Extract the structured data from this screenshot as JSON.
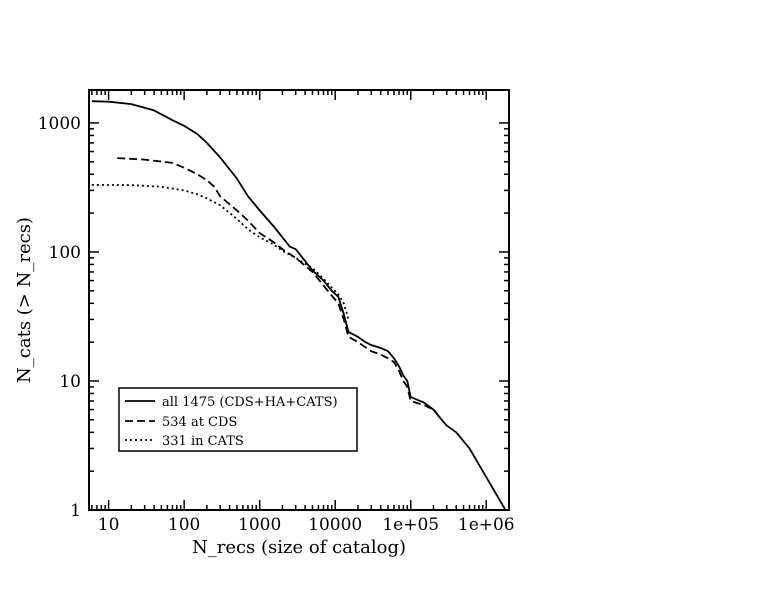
{
  "chart_data": {
    "type": "line",
    "xlabel": "N_recs (size of catalog)",
    "ylabel": "N_cats (> N_recs)",
    "xscale": "log",
    "yscale": "log",
    "xlim": [
      5.5,
      2000000
    ],
    "ylim": [
      1,
      1800
    ],
    "xticks": [
      {
        "value": 10,
        "label": "10"
      },
      {
        "value": 100,
        "label": "100"
      },
      {
        "value": 1000,
        "label": "1000"
      },
      {
        "value": 10000,
        "label": "10000"
      },
      {
        "value": 100000,
        "label": "1e+05"
      },
      {
        "value": 1000000,
        "label": "1e+06"
      }
    ],
    "yticks": [
      {
        "value": 1,
        "label": "1"
      },
      {
        "value": 10,
        "label": "10"
      },
      {
        "value": 100,
        "label": "100"
      },
      {
        "value": 1000,
        "label": "1000"
      }
    ],
    "grid": false,
    "legend_position": "bottom-left",
    "series": [
      {
        "name": "all 1475 (CDS+HA+CATS)",
        "style": "solid",
        "color": "#000000",
        "points": [
          [
            6,
            1475
          ],
          [
            10,
            1460
          ],
          [
            20,
            1400
          ],
          [
            40,
            1250
          ],
          [
            70,
            1050
          ],
          [
            100,
            950
          ],
          [
            150,
            820
          ],
          [
            200,
            700
          ],
          [
            300,
            540
          ],
          [
            500,
            370
          ],
          [
            700,
            270
          ],
          [
            1000,
            210
          ],
          [
            1500,
            160
          ],
          [
            2000,
            130
          ],
          [
            2500,
            110
          ],
          [
            3000,
            105
          ],
          [
            4000,
            85
          ],
          [
            5000,
            72
          ],
          [
            7000,
            60
          ],
          [
            9000,
            50
          ],
          [
            11000,
            45
          ],
          [
            13000,
            33
          ],
          [
            15000,
            24
          ],
          [
            20000,
            22
          ],
          [
            25000,
            20
          ],
          [
            30000,
            19
          ],
          [
            40000,
            18
          ],
          [
            50000,
            17
          ],
          [
            60000,
            15
          ],
          [
            70000,
            13
          ],
          [
            80000,
            11
          ],
          [
            90000,
            10
          ],
          [
            100000,
            7.5
          ],
          [
            150000,
            6.8
          ],
          [
            200000,
            6
          ],
          [
            250000,
            5.1
          ],
          [
            300000,
            4.5
          ],
          [
            400000,
            4
          ],
          [
            600000,
            3
          ],
          [
            900000,
            2
          ],
          [
            1800000,
            1
          ]
        ]
      },
      {
        "name": "534 at CDS",
        "style": "dashed",
        "color": "#000000",
        "points": [
          [
            13,
            534
          ],
          [
            30,
            520
          ],
          [
            70,
            490
          ],
          [
            100,
            450
          ],
          [
            150,
            400
          ],
          [
            200,
            360
          ],
          [
            250,
            320
          ],
          [
            300,
            270
          ],
          [
            500,
            210
          ],
          [
            700,
            175
          ],
          [
            1000,
            140
          ],
          [
            1500,
            120
          ],
          [
            2000,
            105
          ],
          [
            3000,
            90
          ],
          [
            5000,
            70
          ],
          [
            7000,
            55
          ],
          [
            9000,
            46
          ],
          [
            11000,
            40
          ],
          [
            13000,
            30
          ],
          [
            15000,
            22
          ],
          [
            20000,
            20
          ],
          [
            30000,
            17
          ],
          [
            40000,
            16
          ],
          [
            50000,
            15
          ],
          [
            60000,
            14
          ],
          [
            70000,
            12
          ],
          [
            80000,
            10
          ],
          [
            90000,
            9
          ],
          [
            100000,
            7
          ],
          [
            150000,
            6.5
          ],
          [
            200000,
            6
          ],
          [
            250000,
            5.1
          ]
        ]
      },
      {
        "name": "331 in CATS",
        "style": "dotted",
        "color": "#000000",
        "points": [
          [
            6,
            331
          ],
          [
            20,
            330
          ],
          [
            50,
            320
          ],
          [
            100,
            300
          ],
          [
            150,
            280
          ],
          [
            200,
            260
          ],
          [
            300,
            230
          ],
          [
            500,
            180
          ],
          [
            700,
            150
          ],
          [
            1000,
            130
          ],
          [
            1500,
            115
          ],
          [
            2000,
            102
          ],
          [
            3000,
            90
          ],
          [
            5000,
            75
          ],
          [
            7000,
            62
          ],
          [
            9000,
            53
          ],
          [
            11000,
            47
          ],
          [
            13000,
            40
          ],
          [
            15000,
            30
          ]
        ]
      }
    ]
  }
}
